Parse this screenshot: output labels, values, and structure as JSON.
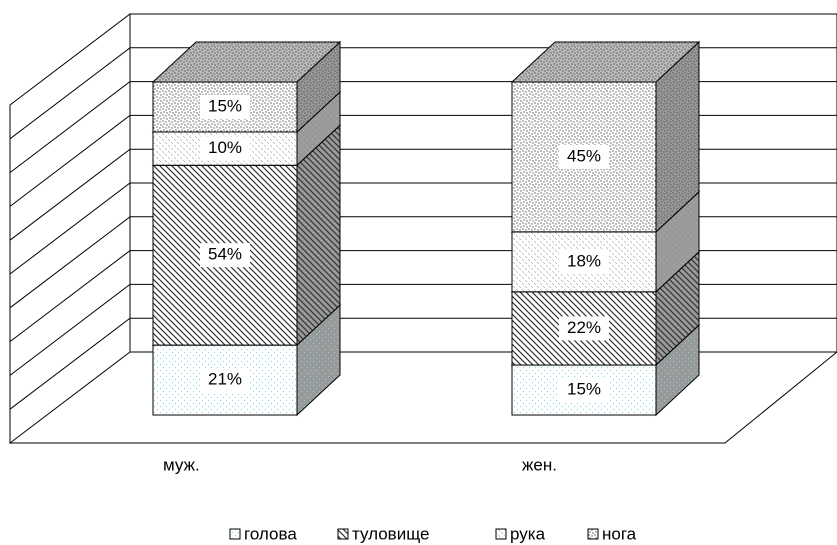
{
  "chart_data": {
    "type": "stacked_bar_3d",
    "categories": [
      "муж.",
      "жен."
    ],
    "series": [
      {
        "name": "голова",
        "color": "#7fd6e0",
        "pattern": "dots",
        "values": [
          21,
          15
        ],
        "value_labels": [
          "21%",
          "15%"
        ]
      },
      {
        "name": "туловище",
        "color": "#333333",
        "pattern": "hatch",
        "values": [
          54,
          22
        ],
        "value_labels": [
          "54%",
          "22%"
        ]
      },
      {
        "name": "рука",
        "color": "#aaaaaa",
        "pattern": "dashes",
        "values": [
          10,
          18
        ],
        "value_labels": [
          "10%",
          "18%"
        ]
      },
      {
        "name": "нога",
        "color": "#555555",
        "pattern": "dense-dots",
        "values": [
          15,
          45
        ],
        "value_labels": [
          "15%",
          "45%"
        ]
      }
    ],
    "ylim": [
      0,
      100
    ],
    "grid": true
  }
}
